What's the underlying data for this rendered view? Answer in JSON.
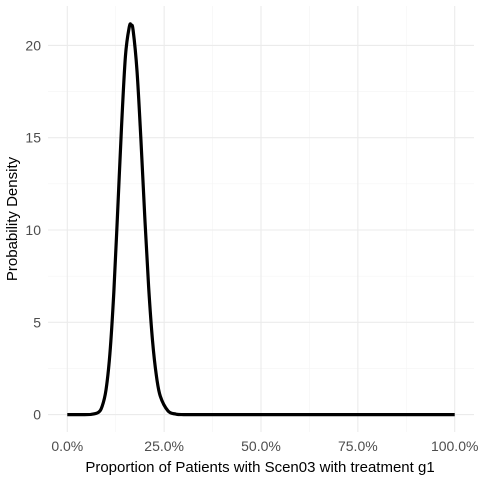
{
  "chart_data": {
    "type": "line",
    "title": "",
    "xlabel": "Proportion of Patients with Scen03 with treatment g1",
    "ylabel": "Probability Density",
    "xlim": [
      0,
      1
    ],
    "ylim": [
      0,
      21.1
    ],
    "x_ticks": [
      0,
      0.25,
      0.5,
      0.75,
      1.0
    ],
    "x_tick_labels": [
      "0.0%",
      "25.0%",
      "50.0%",
      "75.0%",
      "100.0%"
    ],
    "y_ticks": [
      0,
      5,
      10,
      15,
      20
    ],
    "y_tick_labels": [
      "0",
      "5",
      "10",
      "15",
      "20"
    ],
    "grid": true,
    "series": [
      {
        "color": "#000000",
        "x": [
          0,
          0.04,
          0.06,
          0.08,
          0.09,
          0.1,
          0.11,
          0.12,
          0.13,
          0.14,
          0.15,
          0.16,
          0.165,
          0.17,
          0.18,
          0.19,
          0.2,
          0.21,
          0.22,
          0.23,
          0.24,
          0.26,
          0.28,
          0.3,
          0.4,
          0.6,
          0.8,
          1.0
        ],
        "y": [
          0,
          0.0,
          0.01,
          0.12,
          0.45,
          1.35,
          3.3,
          6.6,
          11.0,
          15.6,
          19.4,
          21.0,
          21.1,
          20.8,
          18.6,
          14.9,
          10.7,
          6.9,
          4.0,
          2.1,
          1.0,
          0.2,
          0.03,
          0.0,
          0,
          0,
          0,
          0
        ]
      }
    ]
  }
}
